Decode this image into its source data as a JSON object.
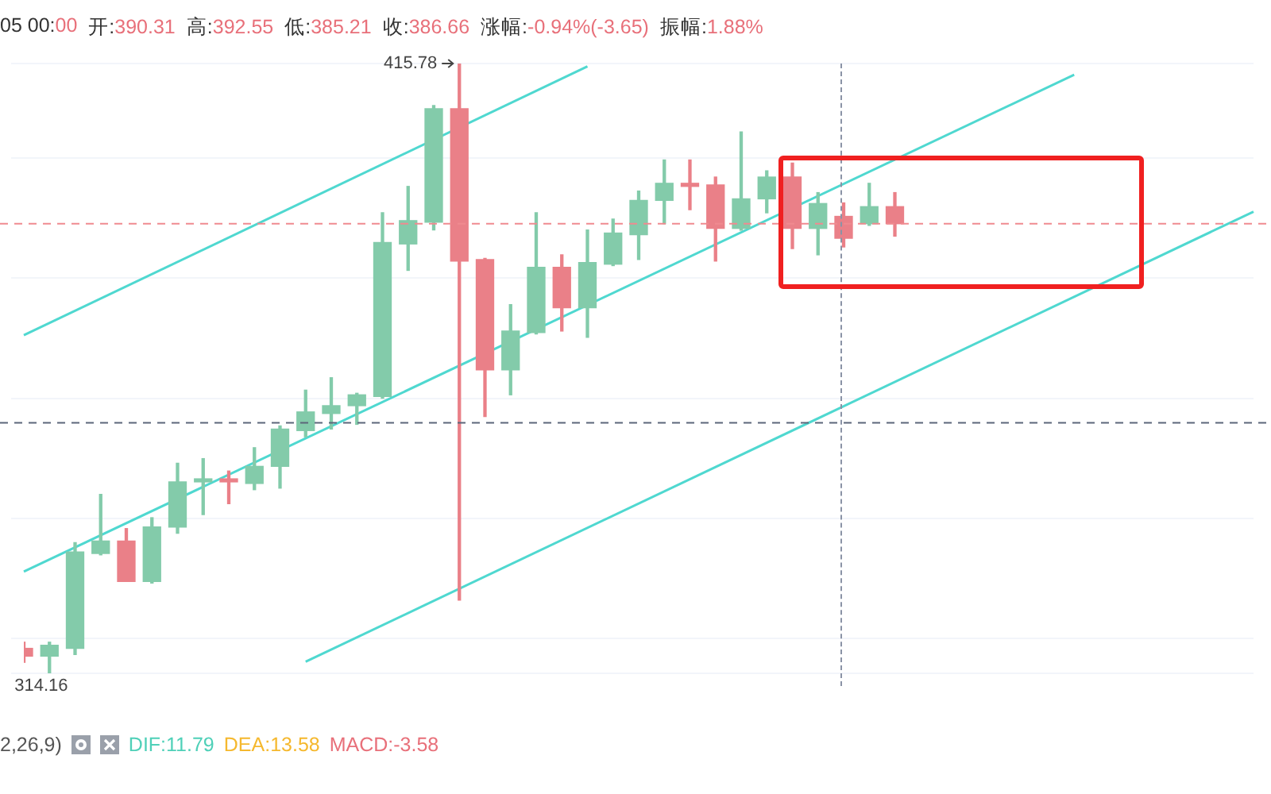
{
  "chart_data": {
    "type": "candlestick",
    "categories": [
      null,
      null,
      null,
      null,
      null,
      null,
      null,
      null,
      null,
      null,
      null,
      null,
      null,
      null,
      null,
      null,
      null,
      null,
      null,
      null,
      null,
      null,
      null,
      null,
      null,
      null,
      null,
      null,
      null,
      null,
      null,
      null,
      null,
      null,
      null,
      null,
      null,
      null,
      null,
      null,
      null,
      null,
      null,
      null,
      null,
      null,
      null,
      null,
      null
    ],
    "ohlc": [
      [
        318.32,
        319.35,
        315.99,
        317.02
      ],
      [
        317.02,
        319.35,
        314.16,
        318.84
      ],
      [
        318.32,
        335.95,
        317.28,
        334.39
      ],
      [
        334.13,
        343.98,
        333.9,
        336.21
      ],
      [
        336.21,
        338.28,
        329.47,
        329.47
      ],
      [
        329.47,
        340.09,
        329.2,
        338.54
      ],
      [
        338.54,
        349.17,
        337.5,
        346.06
      ],
      [
        346.06,
        349.94,
        340.61,
        346.57
      ],
      [
        346.57,
        347.87,
        342.43,
        346.06
      ],
      [
        345.8,
        351.76,
        344.76,
        348.65
      ],
      [
        348.65,
        355.39,
        345.02,
        354.87
      ],
      [
        354.61,
        361.35,
        353.57,
        357.72
      ],
      [
        357.46,
        363.42,
        354.87,
        358.76
      ],
      [
        358.76,
        360.83,
        355.65,
        360.57
      ],
      [
        360.31,
        390.9,
        360.0,
        385.97
      ],
      [
        385.71,
        395.3,
        381.31,
        389.6
      ],
      [
        389.34,
        408.78,
        388.05,
        408.26
      ],
      [
        408.26,
        415.78,
        326.36,
        382.86
      ],
      [
        383.12,
        383.3,
        356.94,
        364.72
      ],
      [
        364.72,
        375.6,
        360.57,
        371.2
      ],
      [
        370.94,
        390.9,
        370.7,
        381.82
      ],
      [
        381.82,
        383.9,
        371.2,
        375.09
      ],
      [
        375.09,
        388.05,
        370.16,
        382.6
      ],
      [
        382.34,
        389.86,
        382.1,
        387.53
      ],
      [
        387.27,
        394.53,
        383.12,
        392.97
      ],
      [
        392.97,
        399.71,
        389.08,
        395.82
      ],
      [
        395.82,
        399.71,
        391.42,
        395.3
      ],
      [
        395.56,
        396.86,
        382.86,
        388.3
      ],
      [
        388.3,
        404.38,
        388.0,
        393.23
      ],
      [
        393.23,
        397.9,
        390.9,
        396.86
      ],
      [
        396.86,
        399.19,
        384.94,
        388.3
      ],
      [
        388.3,
        394.27,
        383.9,
        392.45
      ],
      [
        390.31,
        392.55,
        385.21,
        386.66
      ],
      [
        389.08,
        395.82,
        388.8,
        391.93
      ],
      [
        391.93,
        394.27,
        387.01,
        389.08
      ],
      null,
      null,
      null,
      null,
      null,
      null,
      null,
      null,
      null,
      null,
      null,
      null,
      null,
      null
    ],
    "series": [
      {
        "type": "line",
        "color": "#4fd8d0",
        "values": [
          370.5,
          null,
          null,
          null,
          null,
          null,
          null,
          null,
          null,
          null,
          null,
          null,
          null,
          null,
          null,
          null,
          null,
          null,
          null,
          null,
          null,
          null,
          415.3,
          null,
          null,
          null,
          null,
          null,
          null,
          null,
          null,
          null,
          null,
          null,
          null,
          null,
          null,
          null,
          null,
          null,
          null,
          null,
          null,
          null,
          null,
          null,
          null,
          null,
          null
        ]
      },
      {
        "type": "line",
        "color": "#4fd8d0",
        "values": [
          331.1,
          null,
          null,
          null,
          null,
          null,
          null,
          null,
          null,
          null,
          null,
          null,
          null,
          null,
          null,
          null,
          null,
          null,
          null,
          null,
          null,
          null,
          null,
          null,
          null,
          null,
          null,
          null,
          null,
          null,
          null,
          null,
          null,
          null,
          null,
          null,
          null,
          null,
          null,
          null,
          null,
          413.9,
          null,
          null,
          null,
          null,
          null,
          null,
          null
        ]
      },
      {
        "type": "line",
        "color": "#4fd8d0",
        "values": [
          null,
          null,
          null,
          null,
          null,
          null,
          null,
          null,
          null,
          null,
          null,
          316.1,
          null,
          null,
          null,
          null,
          null,
          null,
          null,
          null,
          null,
          null,
          null,
          null,
          null,
          null,
          null,
          null,
          null,
          null,
          null,
          null,
          null,
          null,
          null,
          null,
          null,
          null,
          null,
          null,
          null,
          null,
          null,
          null,
          null,
          null,
          null,
          null,
          391.1
        ]
      }
    ],
    "ref_lines": [
      {
        "axis": "y",
        "value": 389.08,
        "color": "#f08a90",
        "line_style": "dashed"
      },
      {
        "axis": "y",
        "value": 355.91,
        "color": "#5c667a",
        "line_style": "dashed"
      }
    ],
    "annotations": [
      "415.78",
      "314.16",
      "05 00:00",
      "开:390.31",
      "高:392.55",
      "低:385.21",
      "收:386.66",
      "涨幅:-0.94%(-3.65)",
      "振幅:1.88%",
      "2,26,9)",
      "DIF:11.79",
      "DEA:13.58",
      "MACD:-3.58"
    ],
    "grid": "y",
    "tick_labels": false,
    "legend": false
  }
}
